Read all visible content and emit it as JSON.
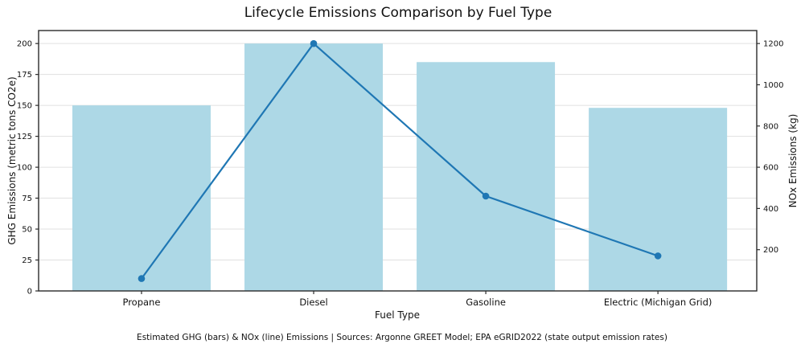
{
  "chart_data": {
    "type": "combo",
    "title": "Lifecycle Emissions Comparison by Fuel Type",
    "xlabel": "Fuel Type",
    "ylabel_left": "GHG Emissions (metric tons CO2e)",
    "ylabel_right": "NOx Emissions (kg)",
    "footnote": "Estimated GHG (bars) & NOx (line) Emissions | Sources: Argonne GREET Model; EPA eGRID2022 (state output emission rates)",
    "categories": [
      "Propane",
      "Diesel",
      "Gasoline",
      "Electric (Michigan Grid)"
    ],
    "series": [
      {
        "name": "GHG Emissions (bars)",
        "type": "bar",
        "axis": "left",
        "values": [
          150,
          200,
          185,
          148
        ],
        "color": "#add8e6"
      },
      {
        "name": "NOx Emissions (line)",
        "type": "line",
        "axis": "right",
        "values": [
          60,
          1200,
          460,
          170
        ],
        "color": "#1f77b4"
      }
    ],
    "ylim_left": [
      0,
      210.5
    ],
    "ylim_right": [
      0,
      1263
    ],
    "yticks_left": [
      0,
      25,
      50,
      75,
      100,
      125,
      150,
      175,
      200
    ],
    "yticks_right": [
      200,
      400,
      600,
      800,
      1000,
      1200
    ],
    "grid": true,
    "legend": "none",
    "colors": {
      "bar": "#add8e6",
      "line": "#1f77b4",
      "grid": "#e0e0e0",
      "spine": "#2b2b2b"
    }
  }
}
